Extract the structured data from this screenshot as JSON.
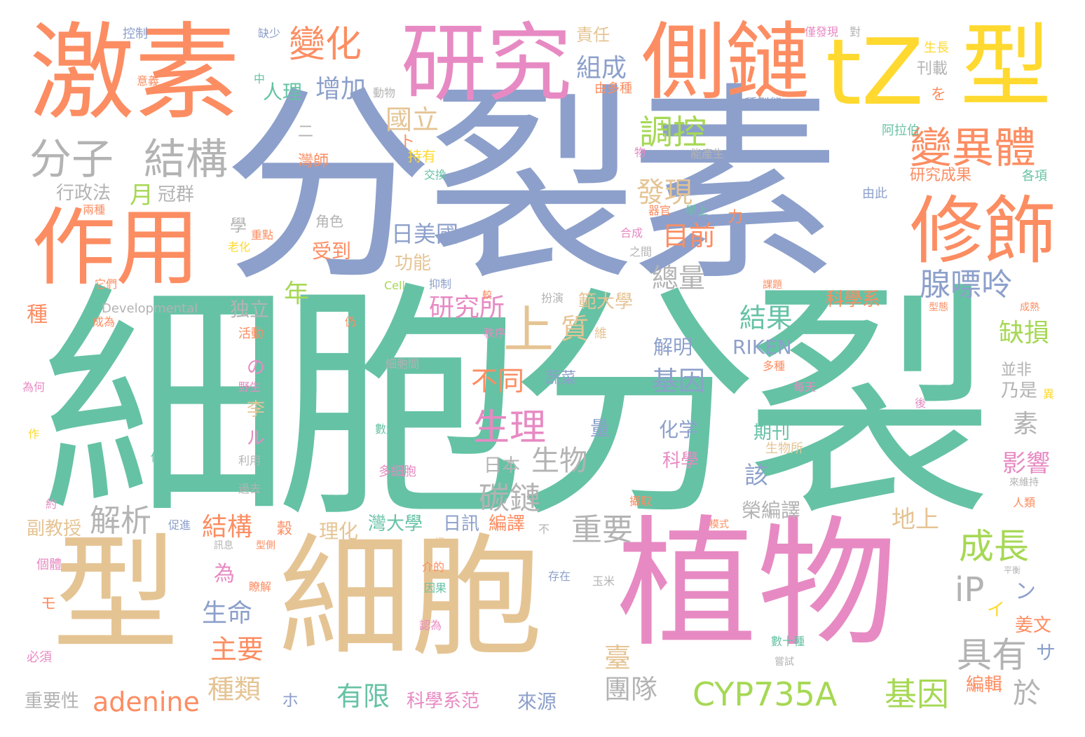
{
  "palette": {
    "orange": "#fc8d62",
    "blue": "#8da0cb",
    "green": "#66c2a5",
    "pink": "#e78ac3",
    "lime": "#a6d854",
    "yellow": "#ffd92f",
    "tan": "#e5c494",
    "gray": "#b3b3b3"
  },
  "words": [
    {
      "text": "細胞分裂",
      "color": "green"
    },
    {
      "text": "分裂素",
      "color": "blue"
    },
    {
      "text": "植物",
      "color": "pink"
    },
    {
      "text": "細胞",
      "color": "tan"
    },
    {
      "text": "型",
      "color": "tan"
    },
    {
      "text": "激素",
      "color": "orange"
    },
    {
      "text": "研究",
      "color": "pink"
    },
    {
      "text": "側鏈",
      "color": "orange"
    },
    {
      "text": "tZ",
      "color": "yellow"
    },
    {
      "text": "型",
      "color": "yellow"
    },
    {
      "text": "作用",
      "color": "orange"
    },
    {
      "text": "修飾",
      "color": "orange"
    },
    {
      "text": "變異體",
      "color": "orange"
    },
    {
      "text": "變化",
      "color": "orange"
    },
    {
      "text": "分子",
      "color": "gray"
    },
    {
      "text": "結構",
      "color": "gray"
    },
    {
      "text": "CYP735A",
      "color": "lime"
    },
    {
      "text": "基因",
      "color": "lime"
    },
    {
      "text": "生理",
      "color": "pink"
    },
    {
      "text": "成長",
      "color": "lime"
    },
    {
      "text": "具有",
      "color": "gray"
    },
    {
      "text": "腺嘌呤",
      "color": "blue"
    },
    {
      "text": "上",
      "color": "tan"
    },
    {
      "text": "調控",
      "color": "lime"
    },
    {
      "text": "發現",
      "color": "tan"
    },
    {
      "text": "解析",
      "color": "gray"
    },
    {
      "text": "碳鏈",
      "color": "gray"
    },
    {
      "text": "重要",
      "color": "gray"
    },
    {
      "text": "組成",
      "color": "blue"
    },
    {
      "text": "增加",
      "color": "blue"
    },
    {
      "text": "國立",
      "color": "tan"
    },
    {
      "text": "研究所",
      "color": "pink"
    },
    {
      "text": "不同",
      "color": "orange"
    },
    {
      "text": "生物",
      "color": "gray"
    },
    {
      "text": "iP",
      "color": "gray"
    },
    {
      "text": "adenine",
      "color": "orange"
    },
    {
      "text": "結果",
      "color": "green"
    },
    {
      "text": "基因",
      "color": "blue"
    },
    {
      "text": "總量",
      "color": "gray"
    },
    {
      "text": "目前",
      "color": "orange"
    },
    {
      "text": "日美國",
      "color": "blue"
    },
    {
      "text": "質",
      "color": "tan"
    },
    {
      "text": "結構",
      "color": "orange"
    },
    {
      "text": "生命",
      "color": "blue"
    },
    {
      "text": "主要",
      "color": "orange"
    },
    {
      "text": "種類",
      "color": "tan"
    },
    {
      "text": "有限",
      "color": "green"
    },
    {
      "text": "團隊",
      "color": "gray"
    },
    {
      "text": "於",
      "color": "gray"
    },
    {
      "text": "缺損",
      "color": "lime"
    },
    {
      "text": "地上",
      "color": "tan"
    },
    {
      "text": "影響",
      "color": "pink"
    },
    {
      "text": "素",
      "color": "gray"
    },
    {
      "text": "臺",
      "color": "tan"
    },
    {
      "text": "該",
      "color": "blue"
    },
    {
      "text": "年",
      "color": "lime"
    },
    {
      "text": "月",
      "color": "lime"
    },
    {
      "text": "冠群",
      "color": "gray"
    },
    {
      "text": "行政法",
      "color": "gray"
    },
    {
      "text": "受到",
      "color": "orange"
    },
    {
      "text": "功能",
      "color": "tan"
    },
    {
      "text": "為",
      "color": "pink"
    },
    {
      "text": "の",
      "color": "pink"
    },
    {
      "text": "李",
      "color": "tan"
    },
    {
      "text": "ル",
      "color": "pink"
    },
    {
      "text": "独立",
      "color": "gray"
    },
    {
      "text": "RIKEN",
      "color": "blue"
    },
    {
      "text": "解明",
      "color": "blue"
    },
    {
      "text": "化学",
      "color": "blue"
    },
    {
      "text": "科學",
      "color": "pink"
    },
    {
      "text": "期刊",
      "color": "green"
    },
    {
      "text": "日本",
      "color": "gray"
    },
    {
      "text": "榮編譯",
      "color": "gray"
    },
    {
      "text": "日訊",
      "color": "blue"
    },
    {
      "text": "編譯",
      "color": "orange"
    },
    {
      "text": "理化",
      "color": "tan"
    },
    {
      "text": "灣大學",
      "color": "green"
    },
    {
      "text": "來源",
      "color": "blue"
    },
    {
      "text": "科學系范",
      "color": "pink"
    },
    {
      "text": "科學系",
      "color": "orange"
    },
    {
      "text": "範大學",
      "color": "tan"
    },
    {
      "text": "蔬菜",
      "color": "blue"
    },
    {
      "text": "副教授",
      "color": "tan"
    },
    {
      "text": "重要性",
      "color": "gray"
    },
    {
      "text": "姜文",
      "color": "orange"
    },
    {
      "text": "編輯",
      "color": "orange"
    },
    {
      "text": "サ",
      "color": "blue"
    },
    {
      "text": "ン",
      "color": "blue"
    },
    {
      "text": "イ",
      "color": "yellow"
    },
    {
      "text": "責任",
      "color": "tan"
    },
    {
      "text": "研究成果",
      "color": "orange"
    },
    {
      "text": "刊載",
      "color": "gray"
    },
    {
      "text": "種",
      "color": "orange"
    },
    {
      "text": "人理",
      "color": "green"
    },
    {
      "text": "學",
      "color": "gray"
    },
    {
      "text": "角色",
      "color": "gray"
    },
    {
      "text": "二",
      "color": "gray"
    },
    {
      "text": "ト",
      "color": "orange"
    },
    {
      "text": "持有",
      "color": "yellow"
    },
    {
      "text": "灣師",
      "color": "orange"
    },
    {
      "text": "力",
      "color": "orange"
    },
    {
      "text": "量",
      "color": "blue"
    },
    {
      "text": "乃是",
      "color": "gray"
    },
    {
      "text": "並非",
      "color": "gray"
    },
    {
      "text": "生長",
      "color": "yellow"
    },
    {
      "text": "由多種",
      "color": "orange"
    },
    {
      "text": "各項",
      "color": "green"
    },
    {
      "text": "由此",
      "color": "blue"
    },
    {
      "text": "阿拉伯",
      "color": "green"
    },
    {
      "text": "種型態",
      "color": "blue"
    },
    {
      "text": "控制",
      "color": "blue"
    },
    {
      "text": "缺少",
      "color": "blue"
    },
    {
      "text": "僅發現",
      "color": "pink"
    },
    {
      "text": "對",
      "color": "gray"
    },
    {
      "text": "を",
      "color": "orange"
    },
    {
      "text": "動物",
      "color": "gray"
    },
    {
      "text": "意義",
      "color": "orange"
    },
    {
      "text": "中",
      "color": "green"
    },
    {
      "text": "兩種",
      "color": "orange"
    },
    {
      "text": "重點",
      "color": "orange"
    },
    {
      "text": "老化",
      "color": "yellow"
    },
    {
      "text": "它們",
      "color": "orange"
    },
    {
      "text": "Developmental",
      "color": "gray"
    },
    {
      "text": "活動",
      "color": "orange"
    },
    {
      "text": "野生",
      "color": "pink"
    },
    {
      "text": "為何",
      "color": "pink"
    },
    {
      "text": "細胞間",
      "color": "gray"
    },
    {
      "text": "數量",
      "color": "green"
    },
    {
      "text": "多細胞",
      "color": "pink"
    },
    {
      "text": "利用",
      "color": "gray"
    },
    {
      "text": "過去",
      "color": "gray"
    },
    {
      "text": "約",
      "color": "pink"
    },
    {
      "text": "促進",
      "color": "blue"
    },
    {
      "text": "型側",
      "color": "orange"
    },
    {
      "text": "穀",
      "color": "orange"
    },
    {
      "text": "個體",
      "color": "pink"
    },
    {
      "text": "瞭解",
      "color": "orange"
    },
    {
      "text": "モ",
      "color": "orange"
    },
    {
      "text": "必須",
      "color": "pink"
    },
    {
      "text": "ホ",
      "color": "blue"
    },
    {
      "text": "介的",
      "color": "orange"
    },
    {
      "text": "因果",
      "color": "green"
    },
    {
      "text": "認為",
      "color": "pink"
    },
    {
      "text": "存在",
      "color": "blue"
    },
    {
      "text": "玉米",
      "color": "gray"
    },
    {
      "text": "平衡",
      "color": "gray"
    },
    {
      "text": "來維持",
      "color": "gray"
    },
    {
      "text": "人類",
      "color": "orange"
    },
    {
      "text": "數十種",
      "color": "green"
    },
    {
      "text": "嘗試",
      "color": "gray"
    },
    {
      "text": "抑制",
      "color": "blue"
    },
    {
      "text": "Cell",
      "color": "lime"
    },
    {
      "text": "較",
      "color": "orange"
    },
    {
      "text": "扮演",
      "color": "gray"
    },
    {
      "text": "秩序",
      "color": "pink"
    },
    {
      "text": "維",
      "color": "tan"
    },
    {
      "text": "課題",
      "color": "orange"
    },
    {
      "text": "型態",
      "color": "orange"
    },
    {
      "text": "成熟",
      "color": "orange"
    },
    {
      "text": "多種",
      "color": "orange"
    },
    {
      "text": "每天",
      "color": "pink"
    },
    {
      "text": "後",
      "color": "pink"
    },
    {
      "text": "異",
      "color": "yellow"
    },
    {
      "text": "生物所",
      "color": "tan"
    },
    {
      "text": "攝取",
      "color": "orange"
    },
    {
      "text": "模式",
      "color": "orange"
    },
    {
      "text": "交換",
      "color": "green"
    },
    {
      "text": "能產生",
      "color": "gray"
    },
    {
      "text": "器官",
      "color": "orange"
    },
    {
      "text": "學上",
      "color": "green"
    },
    {
      "text": "合成",
      "color": "pink"
    },
    {
      "text": "之間",
      "color": "gray"
    },
    {
      "text": "物",
      "color": "pink"
    },
    {
      "text": "仍",
      "color": "orange"
    },
    {
      "text": "成為",
      "color": "orange"
    },
    {
      "text": "係",
      "color": "green"
    },
    {
      "text": "作",
      "color": "yellow"
    },
    {
      "text": "訊息",
      "color": "gray"
    },
    {
      "text": "不",
      "color": "gray"
    },
    {
      "text": "經",
      "color": "tan"
    }
  ]
}
